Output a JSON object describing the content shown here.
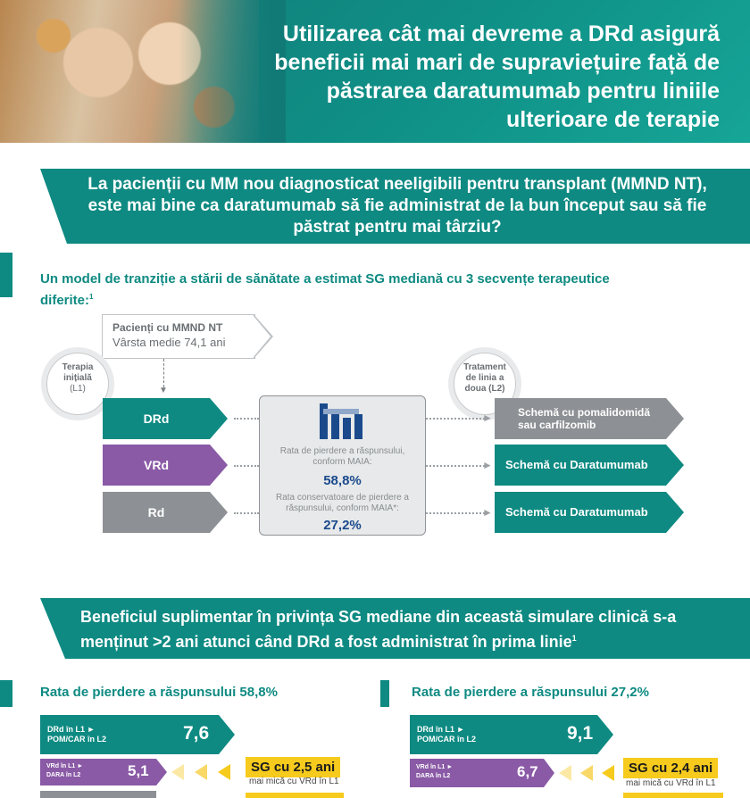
{
  "header": {
    "title": "Utilizarea cât mai devreme a DRd asigură beneficii mai mari de supraviețuire față de păstrarea daratumumab pentru liniile ulterioare de terapie"
  },
  "question": {
    "text": "La pacienții cu MM nou diagnosticat neeligibili pentru transplant (MMND NT), este mai bine ca daratumumab să fie administrat de la bun început sau să fie păstrat pentru mai târziu?"
  },
  "model": {
    "intro": "Un model de tranziție a stării de sănătate a estimat SG mediană cu 3 secvențe terapeutice diferite:",
    "intro_ref": "1",
    "patients_title": "Pacienți cu MMND NT",
    "patients_sub": "Vârsta medie 74,1 ani",
    "l1_circle": [
      "Terapia",
      "inițială",
      "(L1)"
    ],
    "l2_circle": [
      "Tratament",
      "de linia a",
      "doua (L2)"
    ],
    "l1_regimens": [
      "DRd",
      "VRd",
      "Rd"
    ],
    "l2_regimens": [
      "Schemă cu pomalidomidă sau carfilzomib",
      "Schemă cu Daratumumab",
      "Schemă cu Daratumumab"
    ],
    "rate1_label": "Rata de pierdere a răspunsului, conform MAIA:",
    "rate1_value": "58,8%",
    "rate2_label": "Rata conservatoare de pierdere a răspunsului, conform MAIA*:",
    "rate2_value": "27,2%"
  },
  "benefit": {
    "text": "Beneficiul suplimentar în privința SG mediane din această simulare clinică s-a menținut >2 ani atunci când DRd a fost administrat în prima linie",
    "ref": "1"
  },
  "results": [
    {
      "heading": "Rata de pierdere a răspunsului 58,8%",
      "bars": [
        {
          "label1": "DRd în L1 ►",
          "label2": "POM/CAR în L2",
          "value": "7,6"
        },
        {
          "label1": "VRd în L1 ►",
          "label2": "DARA în L2",
          "value": "5,1",
          "tag": "SG cu 2,5 ani",
          "tag_sub": "mai mică cu VRd în L1"
        }
      ]
    },
    {
      "heading": "Rata de pierdere a răspunsului 27,2%",
      "bars": [
        {
          "label1": "DRd în L1 ►",
          "label2": "POM/CAR în L2",
          "value": "9,1"
        },
        {
          "label1": "VRd în L1 ►",
          "label2": "DARA în L2",
          "value": "6,7",
          "tag": "SG cu 2,4 ani",
          "tag_sub": "mai mică cu VRd în L1"
        }
      ]
    }
  ],
  "colors": {
    "teal": "#0e8a82",
    "purple": "#8a5aa6",
    "grey": "#8d9094",
    "yellow": "#f6cb1d",
    "blue": "#1b4a8c"
  }
}
